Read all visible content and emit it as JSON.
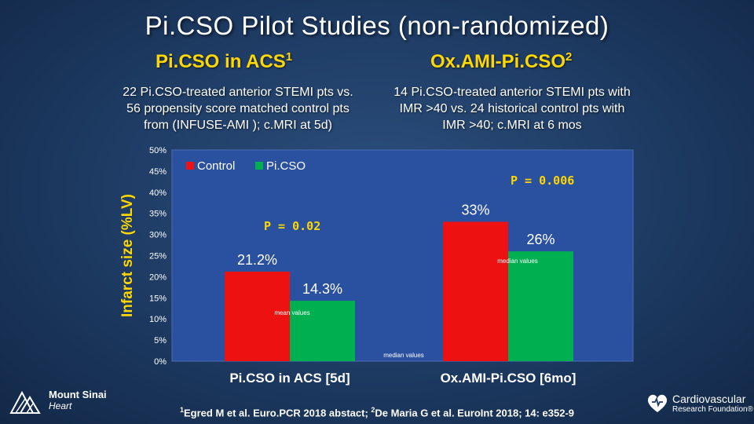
{
  "slide": {
    "title": "Pi.CSO Pilot Studies (non-randomized)",
    "left_heading": "Pi.CSO in ACS",
    "left_heading_ref": "1",
    "right_heading": "Ox.AMI-Pi.CSO",
    "right_heading_ref": "2",
    "left_desc": [
      "22 Pi.CSO-treated anterior STEMI pts vs.",
      "56 propensity score matched control pts",
      "from  (INFUSE-AMI ); c.MRI at 5d)"
    ],
    "right_desc": [
      "14 Pi.CSO-treated anterior STEMI pts with",
      "IMR >40 vs. 24 historical control pts with",
      "IMR >40; c.MRI at 6 mos"
    ],
    "footnote_ref1": "1",
    "footnote_part1": "Egred M et al. Euro.PCR 2018 abstact; ",
    "footnote_ref2": "2",
    "footnote_part2": "De Maria G et al. EuroInt 2018; 14: e352-9",
    "logo_left_line1": "Mount Sinai",
    "logo_left_line2": "Heart",
    "logo_right_line1": "Cardiovascular",
    "logo_right_line2": "Research Foundation®"
  },
  "colors": {
    "control": "#ee1111",
    "picso": "#00b050",
    "plot_bg": "#2a50a0",
    "pvalue": "#ffd700"
  },
  "chart_data": {
    "type": "bar",
    "categories": [
      "Pi.CSO in ACS [5d]",
      "Ox.AMI-Pi.CSO [6mo]"
    ],
    "series": [
      {
        "name": "Control",
        "values": [
          21.2,
          33
        ]
      },
      {
        "name": "Pi.CSO",
        "values": [
          14.3,
          26
        ]
      }
    ],
    "data_labels": [
      [
        "21.2%",
        "33%"
      ],
      [
        "14.3%",
        "26%"
      ]
    ],
    "ylabel": "Infarct size (%LV)",
    "ylim": [
      0,
      50
    ],
    "yticks": [
      0,
      5,
      10,
      15,
      20,
      25,
      30,
      35,
      40,
      45,
      50
    ],
    "yticklabels": [
      "0%",
      "5%",
      "10%",
      "15%",
      "20%",
      "25%",
      "30%",
      "35%",
      "40%",
      "45%",
      "50%"
    ],
    "legend_position": "top-left",
    "p_values": [
      "P = 0.02",
      "P = 0.006"
    ],
    "annotations": [
      "mean values",
      "median values",
      "median values"
    ]
  }
}
